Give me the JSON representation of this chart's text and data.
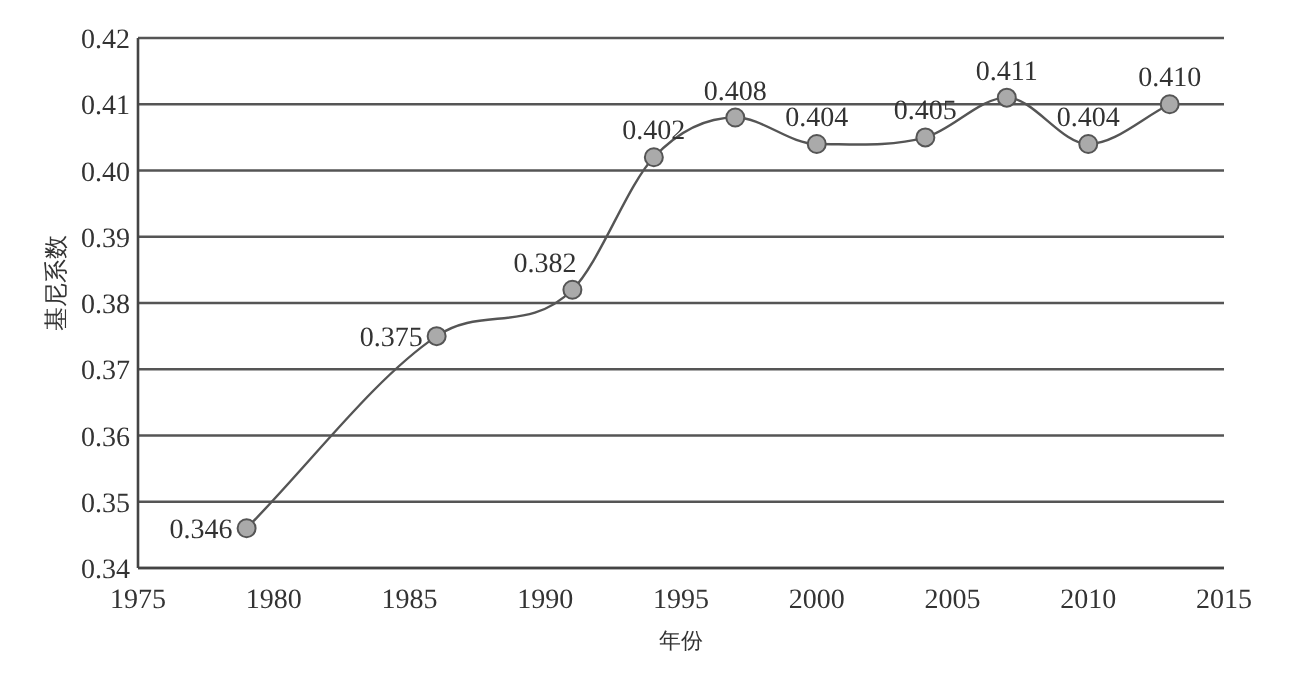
{
  "chart_data": {
    "type": "line",
    "xlabel": "年份",
    "ylabel": "基尼系数",
    "x": [
      1979,
      1986,
      1991,
      1994,
      1997,
      2000,
      2004,
      2007,
      2010,
      2013
    ],
    "series": [
      {
        "color": "#555555",
        "values": [
          0.346,
          0.375,
          0.382,
          0.402,
          0.408,
          0.404,
          0.405,
          0.411,
          0.404,
          0.41
        ],
        "value_labels": [
          "0.346",
          "0.375",
          "0.382",
          "0.402",
          "0.408",
          "0.404",
          "0.405",
          "0.411",
          "0.404",
          "0.410"
        ]
      }
    ],
    "xlim": [
      1975,
      2015
    ],
    "xticks": [
      1975,
      1980,
      1985,
      1990,
      1995,
      2000,
      2005,
      2010,
      2015
    ],
    "ylim": [
      0.34,
      0.42
    ],
    "yticks": [
      {
        "value": 0.34,
        "label": "0.34"
      },
      {
        "value": 0.35,
        "label": "0.35"
      },
      {
        "value": 0.36,
        "label": "0.36"
      },
      {
        "value": 0.37,
        "label": "0.37"
      },
      {
        "value": 0.38,
        "label": "0.38"
      },
      {
        "value": 0.39,
        "label": "0.39"
      },
      {
        "value": 0.4,
        "label": "0.40"
      },
      {
        "value": 0.41,
        "label": "0.41"
      },
      {
        "value": 0.42,
        "label": "0.42"
      }
    ],
    "grid": "y",
    "marker": "circle",
    "line_style": "solid"
  }
}
